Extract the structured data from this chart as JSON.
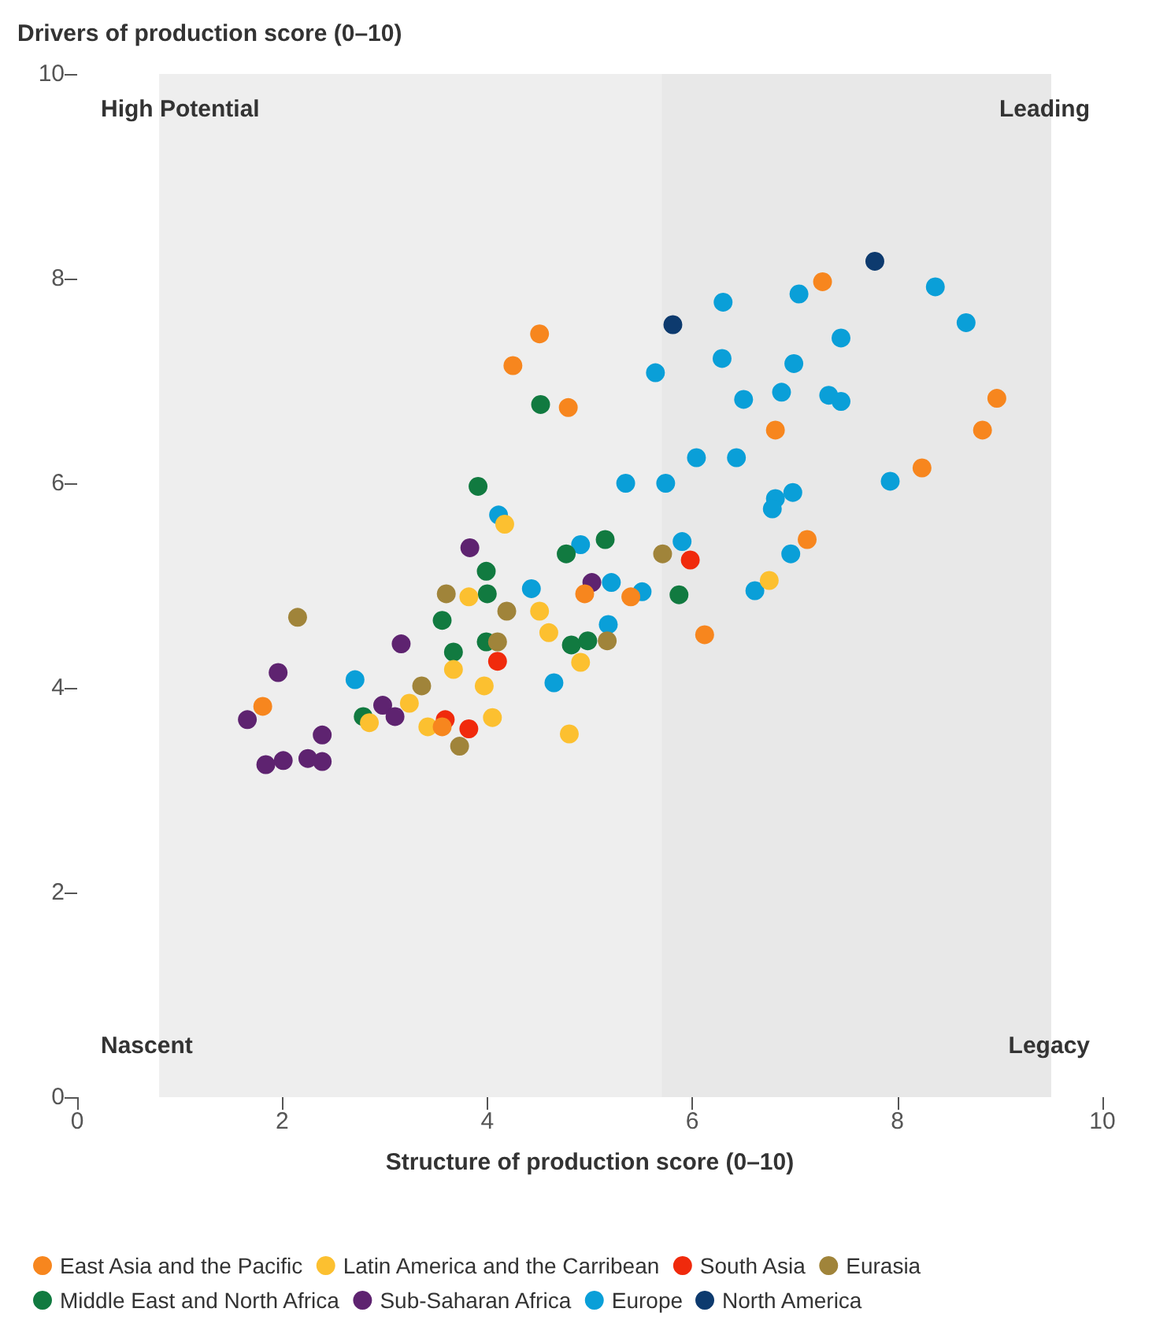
{
  "chart_data": {
    "type": "scatter",
    "xlabel": "Structure of production score (0–10)",
    "ylabel": "Drivers of production score (0–10)",
    "xlim": [
      0,
      10
    ],
    "xticks": [
      0,
      2,
      4,
      6,
      8,
      10
    ],
    "ylim": [
      0,
      10
    ],
    "yticks": [
      0,
      2,
      4,
      6,
      8,
      10
    ],
    "grid": false,
    "legend": "bottom",
    "marker": "circle",
    "bands": [
      {
        "axis": "x",
        "from": 0.8,
        "to": 5.7,
        "color": "#eeeeee"
      },
      {
        "axis": "x",
        "from": 5.7,
        "to": 9.5,
        "color": "#e8e8e8"
      }
    ],
    "annotations": [
      "High Potential",
      "Leading",
      "Nascent",
      "Legacy"
    ],
    "series": [
      {
        "name": "East Asia and the Pacific",
        "color": "#f7861e",
        "x": [
          7.27,
          7.12,
          8.97,
          8.83,
          8.24,
          6.81,
          4.51,
          4.25,
          4.79,
          6.12,
          4.95,
          5.4,
          1.81,
          3.56
        ],
        "values": [
          7.97,
          5.45,
          6.83,
          6.52,
          6.15,
          6.52,
          7.46,
          7.15,
          6.74,
          4.52,
          4.92,
          4.89,
          3.82,
          3.62
        ]
      },
      {
        "name": "Latin America and the Carribean",
        "color": "#fcc030",
        "x": [
          4.17,
          3.82,
          3.67,
          3.97,
          3.24,
          4.05,
          2.85,
          3.42,
          4.51,
          4.6,
          4.91,
          4.8,
          6.75
        ],
        "values": [
          5.6,
          4.89,
          4.18,
          4.02,
          3.85,
          3.71,
          3.66,
          3.62,
          4.75,
          4.54,
          4.25,
          3.55,
          5.05
        ]
      },
      {
        "name": "South Asia",
        "color": "#f02a0c",
        "x": [
          4.1,
          3.59,
          3.82,
          5.98
        ],
        "values": [
          4.26,
          3.69,
          3.6,
          5.25
        ]
      },
      {
        "name": "Eurasia",
        "color": "#a0843a",
        "x": [
          2.15,
          3.6,
          4.19,
          4.1,
          3.36,
          3.73,
          5.71,
          5.17
        ],
        "values": [
          4.69,
          4.92,
          4.75,
          4.45,
          4.02,
          3.43,
          5.31,
          4.46
        ]
      },
      {
        "name": "Middle East and North Africa",
        "color": "#117a40",
        "x": [
          3.99,
          4.0,
          3.56,
          3.67,
          3.99,
          2.79,
          5.15,
          4.77,
          4.82,
          4.98,
          5.87,
          4.52,
          3.91
        ],
        "values": [
          5.14,
          4.92,
          4.66,
          4.35,
          4.45,
          3.72,
          5.45,
          5.31,
          4.42,
          4.46,
          4.91,
          6.77,
          5.97
        ]
      },
      {
        "name": "Sub-Saharan Africa",
        "color": "#5e2370",
        "x": [
          3.83,
          3.16,
          1.96,
          1.66,
          2.39,
          2.98,
          3.1,
          1.84,
          2.01,
          2.25,
          2.39,
          5.02
        ],
        "values": [
          5.37,
          4.43,
          4.15,
          3.69,
          3.54,
          3.83,
          3.72,
          3.25,
          3.29,
          3.31,
          3.28,
          5.03
        ]
      },
      {
        "name": "Europe",
        "color": "#0a9fd8",
        "x": [
          6.3,
          7.04,
          5.64,
          6.29,
          6.99,
          6.5,
          6.87,
          6.04,
          6.43,
          5.35,
          5.74,
          6.81,
          6.98,
          6.78,
          4.11,
          8.37,
          8.67,
          7.45,
          7.33,
          7.45,
          7.93,
          6.96,
          6.61,
          5.9,
          4.91,
          5.21,
          5.51,
          4.43,
          5.18,
          4.65,
          2.71
        ],
        "values": [
          7.77,
          7.85,
          7.08,
          7.22,
          7.17,
          6.82,
          6.89,
          6.25,
          6.25,
          6.0,
          6.0,
          5.85,
          5.91,
          5.75,
          5.69,
          7.92,
          7.57,
          7.42,
          6.86,
          6.8,
          6.02,
          5.31,
          4.95,
          5.43,
          5.4,
          5.03,
          4.94,
          4.97,
          4.62,
          4.05,
          4.08
        ]
      },
      {
        "name": "North America",
        "color": "#0d3a6e",
        "x": [
          5.81,
          7.78
        ],
        "values": [
          7.55,
          8.17
        ]
      }
    ]
  }
}
